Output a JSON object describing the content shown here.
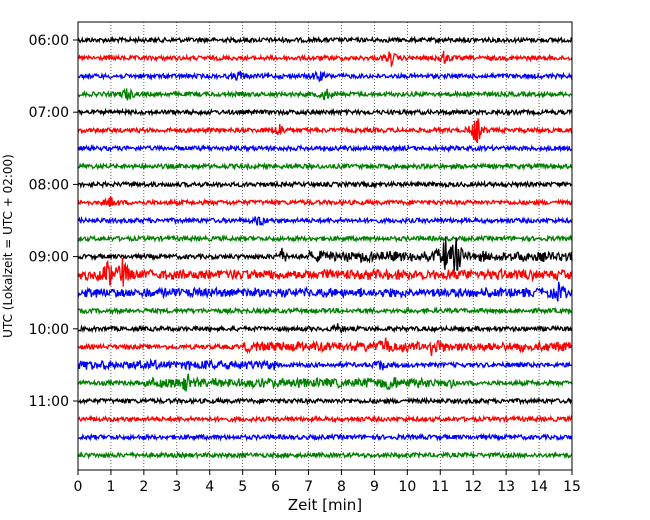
{
  "chart_data": {
    "type": "line",
    "subtype": "helicorder-seismogram",
    "xlabel": "Zeit  [min]",
    "ylabel": "UTC (Lokalzeit = UTC + 02:00)",
    "xlim": [
      0,
      15
    ],
    "x_ticks": [
      "0",
      "1",
      "2",
      "3",
      "4",
      "5",
      "6",
      "7",
      "8",
      "9",
      "10",
      "11",
      "12",
      "13",
      "14",
      "15"
    ],
    "y_tick_labels": [
      {
        "row": 0,
        "label": "06:00"
      },
      {
        "row": 4,
        "label": "07:00"
      },
      {
        "row": 8,
        "label": "08:00"
      },
      {
        "row": 12,
        "label": "09:00"
      },
      {
        "row": 16,
        "label": "10:00"
      },
      {
        "row": 20,
        "label": "11:00"
      }
    ],
    "row_minutes": 15,
    "row_count": 24,
    "grid": "vertical dotted at each minute",
    "colors": [
      "#000000",
      "#ff0000",
      "#0000ff",
      "#008000"
    ],
    "events": [
      {
        "row": 1,
        "minute": 9.5,
        "amp": 0.45
      },
      {
        "row": 1,
        "minute": 11.1,
        "amp": 0.35
      },
      {
        "row": 2,
        "minute": 4.9,
        "amp": 0.3
      },
      {
        "row": 2,
        "minute": 7.3,
        "amp": 0.35
      },
      {
        "row": 3,
        "minute": 1.5,
        "amp": 0.4
      },
      {
        "row": 3,
        "minute": 7.5,
        "amp": 0.4
      },
      {
        "row": 5,
        "minute": 6.1,
        "amp": 0.45
      },
      {
        "row": 5,
        "minute": 12.1,
        "amp": 1.0
      },
      {
        "row": 9,
        "minute": 1.0,
        "amp": 0.3
      },
      {
        "row": 10,
        "minute": 5.5,
        "amp": 0.35
      },
      {
        "row": 12,
        "minute": 6.2,
        "amp": 0.45
      },
      {
        "row": 12,
        "minute": 11.15,
        "amp": 1.0
      },
      {
        "row": 12,
        "minute": 11.5,
        "amp": 1.0
      },
      {
        "row": 13,
        "minute": 0.9,
        "amp": 0.8
      },
      {
        "row": 13,
        "minute": 1.35,
        "amp": 0.8
      },
      {
        "row": 14,
        "minute": 14.6,
        "amp": 0.4
      },
      {
        "row": 16,
        "minute": 7.9,
        "amp": 0.25
      },
      {
        "row": 17,
        "minute": 9.3,
        "amp": 0.55
      },
      {
        "row": 17,
        "minute": 10.8,
        "amp": 0.7
      },
      {
        "row": 18,
        "minute": 9.2,
        "amp": 0.35
      },
      {
        "row": 19,
        "minute": 3.3,
        "amp": 0.45
      },
      {
        "row": 19,
        "minute": 9.5,
        "amp": 0.4
      }
    ],
    "noise_bursts": [
      {
        "row": 13,
        "from": 0,
        "to": 15,
        "amp": 0.35
      },
      {
        "row": 14,
        "from": 0,
        "to": 15,
        "amp": 0.3
      },
      {
        "row": 17,
        "from": 5,
        "to": 15,
        "amp": 0.3
      },
      {
        "row": 18,
        "from": 0,
        "to": 6,
        "amp": 0.3
      },
      {
        "row": 19,
        "from": 2,
        "to": 11.5,
        "amp": 0.3
      },
      {
        "row": 12,
        "from": 7,
        "to": 15,
        "amp": 0.35
      }
    ]
  }
}
